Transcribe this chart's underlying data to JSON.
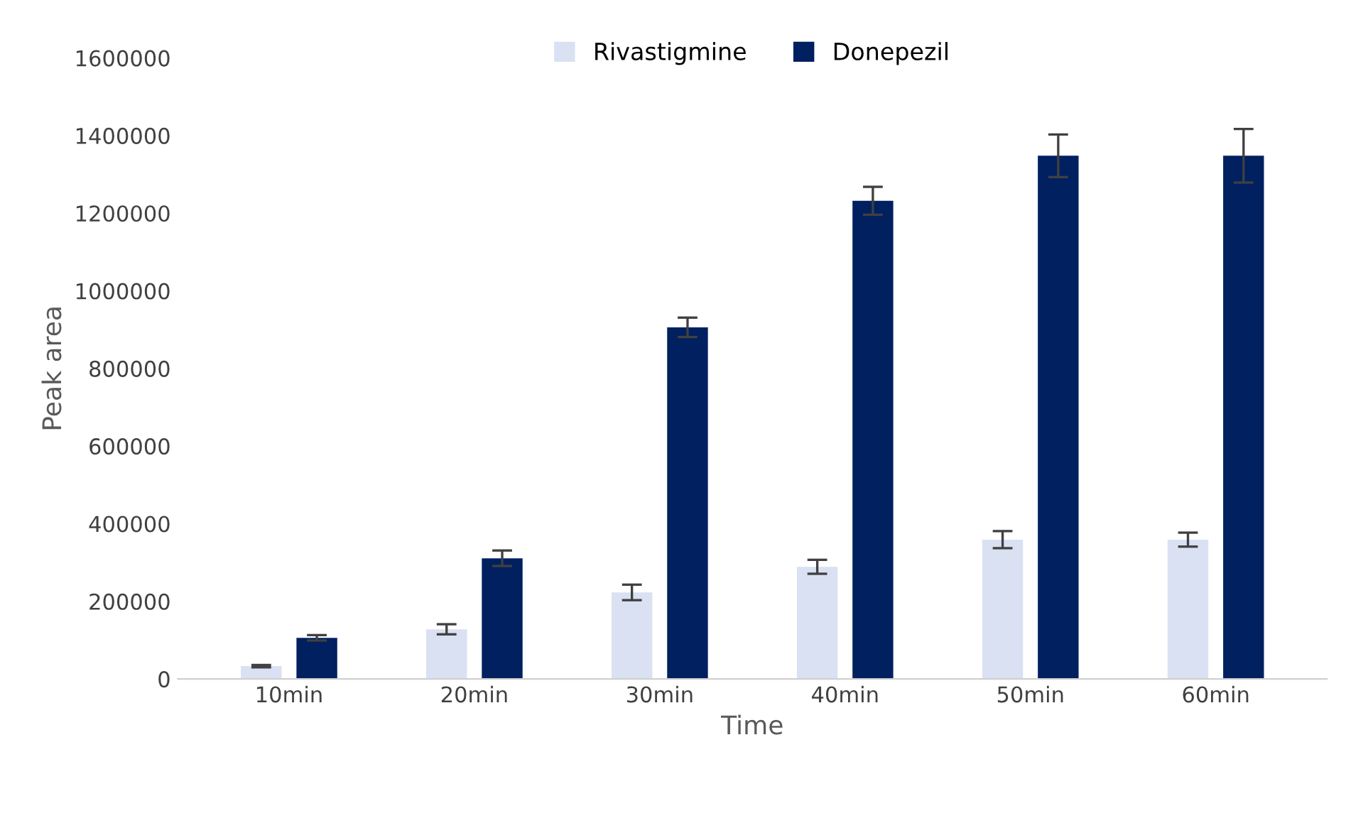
{
  "chart_data": {
    "type": "bar",
    "xlabel": "Time",
    "ylabel": "Peak area",
    "categories": [
      "10min",
      "20min",
      "30min",
      "40min",
      "50min",
      "60min"
    ],
    "series": [
      {
        "name": "Rivastigmine",
        "color": "#d9e1f2",
        "values": [
          33000,
          128000,
          223000,
          289000,
          359000,
          359000
        ],
        "errors": [
          3000,
          13000,
          20000,
          18000,
          22000,
          18000
        ]
      },
      {
        "name": "Donepezil",
        "color": "#002060",
        "values": [
          106000,
          311000,
          906000,
          1232000,
          1348000,
          1348000
        ],
        "errors": [
          7000,
          20000,
          25000,
          36000,
          55000,
          69000
        ]
      }
    ],
    "ylim": [
      0,
      1600000
    ],
    "yticks": [
      0,
      200000,
      400000,
      600000,
      800000,
      1000000,
      1200000,
      1400000,
      1600000
    ],
    "grid": false,
    "legend": "top"
  }
}
